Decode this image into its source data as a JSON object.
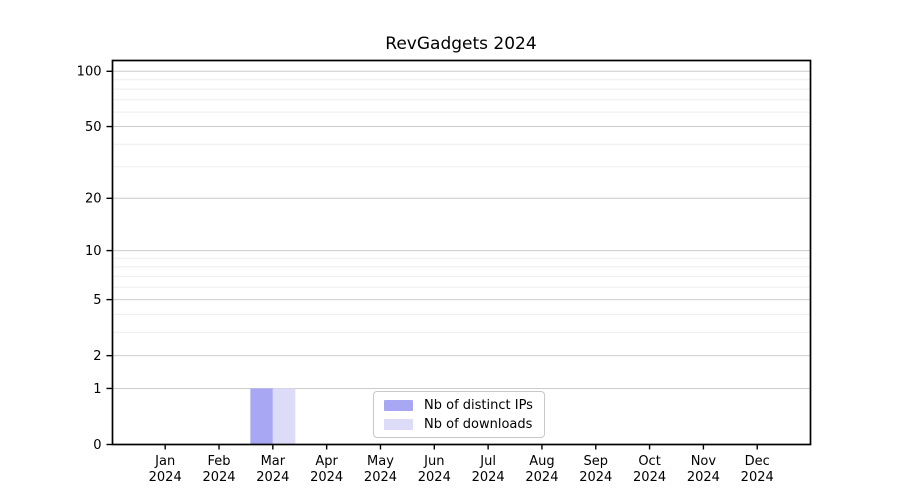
{
  "chart_data": {
    "type": "bar",
    "title": "RevGadgets 2024",
    "categories": [
      "Jan 2024",
      "Feb 2024",
      "Mar 2024",
      "Apr 2024",
      "May 2024",
      "Jun 2024",
      "Jul 2024",
      "Aug 2024",
      "Sep 2024",
      "Oct 2024",
      "Nov 2024",
      "Dec 2024"
    ],
    "series": [
      {
        "name": "Nb of distinct IPs",
        "color": "#a7a7f3",
        "values": [
          0,
          0,
          1,
          0,
          0,
          0,
          0,
          0,
          0,
          0,
          0,
          0
        ]
      },
      {
        "name": "Nb of downloads",
        "color": "#dcdcf8",
        "values": [
          0,
          0,
          1,
          0,
          0,
          0,
          0,
          0,
          0,
          0,
          0,
          0
        ]
      }
    ],
    "xlabel": "",
    "ylabel": "",
    "yscale": "log10(value+1)",
    "ylim": [
      0,
      115
    ],
    "y_major_ticks": [
      0,
      1,
      2,
      5,
      10,
      20,
      50,
      100
    ],
    "y_minor_ticks": [
      3,
      4,
      6,
      7,
      8,
      9,
      30,
      40,
      60,
      70,
      80,
      90
    ],
    "grid": "horizontal major and minor gridlines",
    "legend_position": "lower center",
    "colors": {
      "background": "#ffffff",
      "axis": "#000000",
      "major_grid": "#cccccc",
      "minor_grid": "#eeeeee",
      "legend_border": "#c8c8c8",
      "text": "#000000"
    }
  }
}
